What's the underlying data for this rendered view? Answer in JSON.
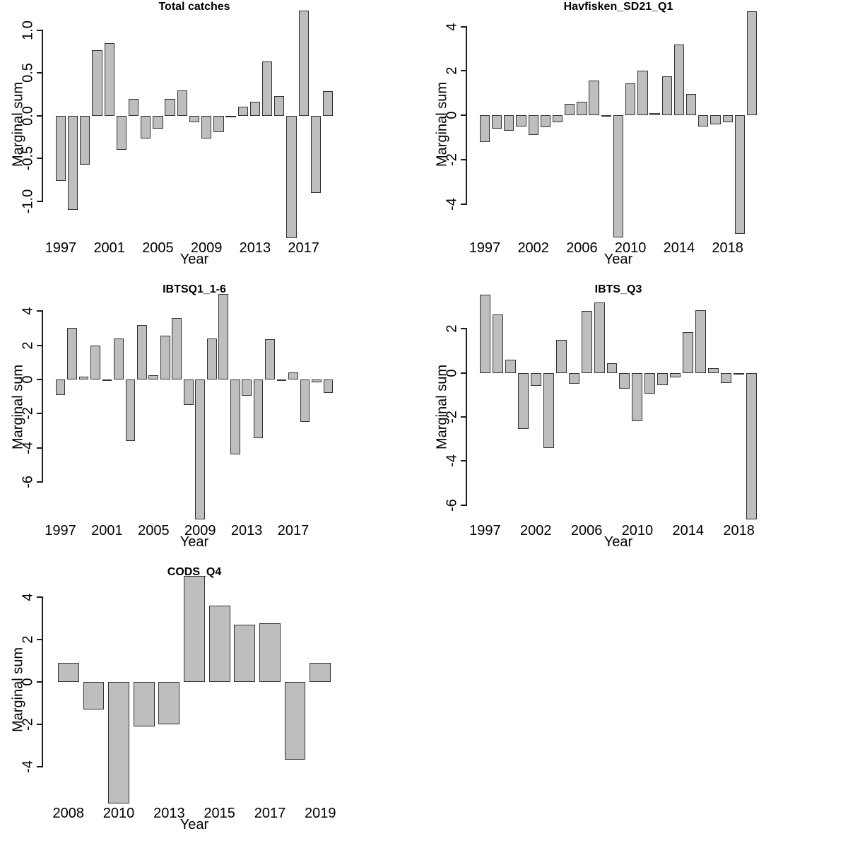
{
  "figure": {
    "bar_fill": "#bebebe",
    "bar_border": "#333333",
    "axis_color": "#1a1a1a",
    "background": "#ffffff"
  },
  "chart_data": [
    {
      "type": "bar",
      "title": "Total catches",
      "xlabel": "Year",
      "ylabel": "Marginal sum",
      "categories": [
        1997,
        1998,
        1999,
        2000,
        2001,
        2002,
        2003,
        2004,
        2005,
        2006,
        2007,
        2008,
        2009,
        2010,
        2011,
        2012,
        2013,
        2014,
        2015,
        2016,
        2017,
        2018,
        2019
      ],
      "values": [
        -0.76,
        -1.1,
        -0.57,
        0.77,
        0.85,
        -0.4,
        0.2,
        -0.27,
        -0.15,
        0.2,
        0.3,
        -0.08,
        -0.27,
        -0.19,
        -0.02,
        0.11,
        0.16,
        0.64,
        0.23,
        -1.43,
        1.23,
        -0.9,
        0.29
      ],
      "ylim": [
        -1.5,
        1.29
      ],
      "yticks": [
        {
          "label": "1.0",
          "value": 1.0
        },
        {
          "label": "0.5",
          "value": 0.5
        },
        {
          "label": "0.0",
          "value": 0.0
        },
        {
          "label": "-0.5",
          "value": -0.5
        },
        {
          "label": "-1.0",
          "value": -1.0
        }
      ],
      "xticks": [
        {
          "label": "1997",
          "bar_index": 0
        },
        {
          "label": "2001",
          "bar_index": 4
        },
        {
          "label": "2005",
          "bar_index": 8
        },
        {
          "label": "2009",
          "bar_index": 12
        },
        {
          "label": "2013",
          "bar_index": 16
        },
        {
          "label": "2017",
          "bar_index": 20
        }
      ],
      "grid": false,
      "legend": false
    },
    {
      "type": "bar",
      "title": "Havfisken_SD21_Q1",
      "xlabel": "Year",
      "ylabel": "Marginal sum",
      "categories": [
        1997,
        1999,
        2000,
        2001,
        2002,
        2003,
        2004,
        2005,
        2006,
        2007,
        2008,
        2009,
        2010,
        2011,
        2012,
        2013,
        2014,
        2015,
        2016,
        2017,
        2018,
        2019,
        2020
      ],
      "values": [
        -1.2,
        -0.6,
        -0.7,
        -0.5,
        -0.9,
        -0.55,
        -0.3,
        0.5,
        0.6,
        1.55,
        -0.05,
        -5.5,
        1.45,
        2.0,
        0.1,
        1.75,
        3.2,
        0.95,
        -0.5,
        -0.4,
        -0.3,
        -5.35,
        4.7
      ],
      "ylim": [
        -5.79,
        4.94
      ],
      "yticks": [
        {
          "label": "4",
          "value": 4
        },
        {
          "label": "2",
          "value": 2
        },
        {
          "label": "0",
          "value": 0
        },
        {
          "label": "-2",
          "value": -2
        },
        {
          "label": "-4",
          "value": -4
        }
      ],
      "xticks": [
        {
          "label": "1997",
          "bar_index": 0
        },
        {
          "label": "2002",
          "bar_index": 4
        },
        {
          "label": "2006",
          "bar_index": 8
        },
        {
          "label": "2010",
          "bar_index": 12
        },
        {
          "label": "2014",
          "bar_index": 16
        },
        {
          "label": "2018",
          "bar_index": 20
        }
      ],
      "grid": false,
      "legend": false
    },
    {
      "type": "bar",
      "title": "IBTSQ1_1-6",
      "xlabel": "Year",
      "ylabel": "Marginal sum",
      "categories": [
        1997,
        1998,
        1999,
        2000,
        2001,
        2002,
        2003,
        2004,
        2005,
        2006,
        2007,
        2008,
        2009,
        2010,
        2011,
        2012,
        2013,
        2014,
        2015,
        2016,
        2017,
        2018,
        2019,
        2020
      ],
      "values": [
        -0.9,
        3.0,
        0.15,
        2.0,
        -0.03,
        2.4,
        -3.6,
        3.2,
        0.25,
        2.55,
        3.6,
        -1.5,
        -8.2,
        2.4,
        5.0,
        -4.4,
        -0.95,
        -3.45,
        2.35,
        -0.1,
        0.4,
        -2.5,
        -0.15,
        -0.8
      ],
      "ylim": [
        -8.6,
        5.33
      ],
      "yticks": [
        {
          "label": "4",
          "value": 4
        },
        {
          "label": "2",
          "value": 2
        },
        {
          "label": "0",
          "value": 0
        },
        {
          "label": "-2",
          "value": -2
        },
        {
          "label": "-4",
          "value": -4
        },
        {
          "label": "-6",
          "value": -6
        }
      ],
      "xticks": [
        {
          "label": "1997",
          "bar_index": 0
        },
        {
          "label": "2001",
          "bar_index": 4
        },
        {
          "label": "2005",
          "bar_index": 8
        },
        {
          "label": "2009",
          "bar_index": 12
        },
        {
          "label": "2013",
          "bar_index": 16
        },
        {
          "label": "2017",
          "bar_index": 20
        }
      ],
      "grid": false,
      "legend": false
    },
    {
      "type": "bar",
      "title": "IBTS_Q3",
      "xlabel": "Year",
      "ylabel": "Marginal sum",
      "categories": [
        1997,
        1999,
        2000,
        2001,
        2002,
        2003,
        2004,
        2005,
        2006,
        2007,
        2008,
        2009,
        2010,
        2011,
        2012,
        2013,
        2014,
        2015,
        2016,
        2017,
        2018,
        2019
      ],
      "values": [
        3.55,
        2.65,
        0.6,
        -2.55,
        -0.6,
        -3.4,
        1.5,
        -0.5,
        2.8,
        3.2,
        0.45,
        -0.7,
        -2.2,
        -0.95,
        -0.55,
        -0.2,
        1.85,
        2.85,
        0.2,
        -0.45,
        -0.05,
        -6.65
      ],
      "ylim": [
        -6.97,
        3.84
      ],
      "yticks": [
        {
          "label": "2",
          "value": 2
        },
        {
          "label": "0",
          "value": 0
        },
        {
          "label": "-2",
          "value": -2
        },
        {
          "label": "-4",
          "value": -4
        },
        {
          "label": "-6",
          "value": -6
        }
      ],
      "xticks": [
        {
          "label": "1997",
          "bar_index": 0
        },
        {
          "label": "2002",
          "bar_index": 4
        },
        {
          "label": "2006",
          "bar_index": 8
        },
        {
          "label": "2010",
          "bar_index": 12
        },
        {
          "label": "2014",
          "bar_index": 16
        },
        {
          "label": "2018",
          "bar_index": 20
        }
      ],
      "grid": false,
      "legend": false
    },
    {
      "type": "bar",
      "title": "CODS_Q4",
      "xlabel": "Year",
      "ylabel": "Marginal sum",
      "categories": [
        2008,
        2009,
        2010,
        2012,
        2013,
        2014,
        2015,
        2016,
        2017,
        2018,
        2019
      ],
      "values": [
        0.9,
        -1.3,
        -5.7,
        -2.1,
        -2.0,
        5.0,
        3.6,
        2.7,
        2.75,
        -3.65,
        0.9
      ],
      "ylim": [
        -5.98,
        5.22
      ],
      "yticks": [
        {
          "label": "4",
          "value": 4
        },
        {
          "label": "2",
          "value": 2
        },
        {
          "label": "0",
          "value": 0
        },
        {
          "label": "-2",
          "value": -2
        },
        {
          "label": "-4",
          "value": -4
        }
      ],
      "xticks": [
        {
          "label": "2008",
          "bar_index": 0
        },
        {
          "label": "2010",
          "bar_index": 2
        },
        {
          "label": "2013",
          "bar_index": 4
        },
        {
          "label": "2015",
          "bar_index": 6
        },
        {
          "label": "2017",
          "bar_index": 8
        },
        {
          "label": "2019",
          "bar_index": 10
        }
      ],
      "grid": false,
      "legend": false
    }
  ]
}
